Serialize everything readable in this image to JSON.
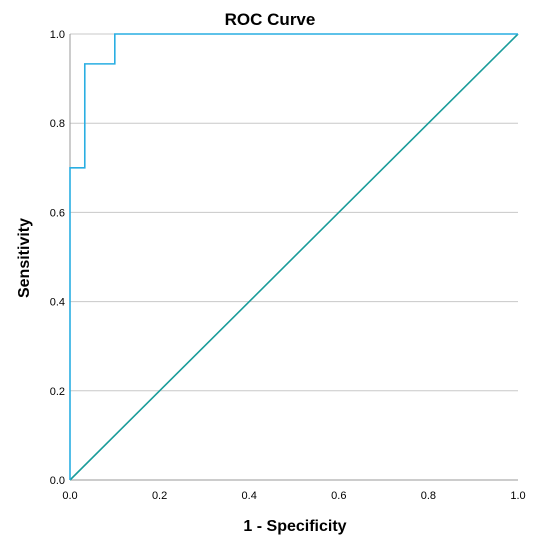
{
  "chart_data": {
    "type": "line",
    "title": "ROC Curve",
    "xlabel": "1 - Specificity",
    "ylabel": "Sensitivity",
    "xlim": [
      0,
      1
    ],
    "ylim": [
      0,
      1
    ],
    "x_ticks": [
      "0.0",
      "0.2",
      "0.4",
      "0.6",
      "0.8",
      "1.0"
    ],
    "y_ticks": [
      "0.0",
      "0.2",
      "0.4",
      "0.6",
      "0.8",
      "1.0"
    ],
    "grid": "horizontal",
    "legend": "none",
    "series": [
      {
        "color": "#29aee2",
        "x": [
          0.0,
          0.0,
          0.033,
          0.033,
          0.1,
          0.1,
          1.0
        ],
        "y": [
          0.0,
          0.7,
          0.7,
          0.933,
          0.933,
          1.0,
          1.0
        ]
      },
      {
        "color": "#1a9c9a",
        "x": [
          0.0,
          1.0
        ],
        "y": [
          0.0,
          1.0
        ]
      }
    ]
  }
}
